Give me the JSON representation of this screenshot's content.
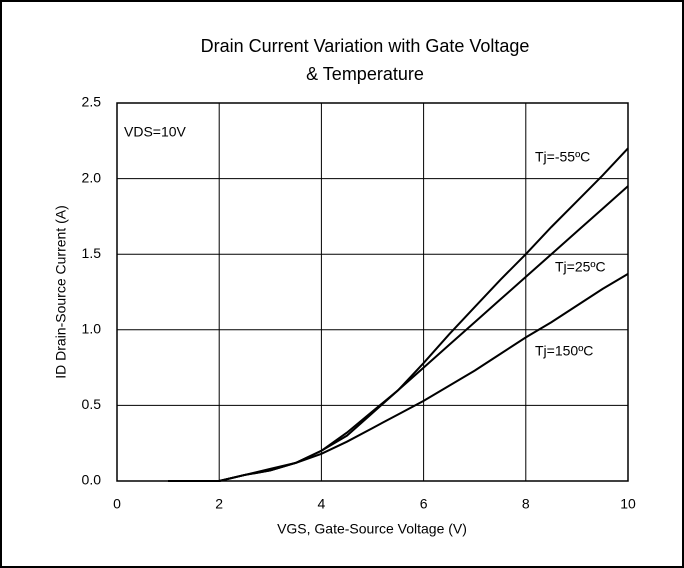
{
  "chart_data": {
    "type": "line",
    "title": [
      "Drain Current Variation with Gate Voltage",
      "& Temperature"
    ],
    "xlabel": "VGS, Gate-Source Voltage (V)",
    "ylabel": "ID Drain-Source Current (A)",
    "annotation": "VDS=10V",
    "x": [
      1,
      2,
      2.5,
      3,
      3.5,
      4,
      4.5,
      5,
      5.5,
      6,
      6.5,
      7,
      7.5,
      8,
      8.5,
      9,
      9.5,
      10
    ],
    "series": [
      {
        "name": "Tj=-55ºC",
        "color": "#000000",
        "values": [
          0,
          0,
          0.04,
          0.07,
          0.12,
          0.2,
          0.3,
          0.45,
          0.6,
          0.78,
          0.97,
          1.15,
          1.33,
          1.5,
          1.68,
          1.85,
          2.02,
          2.2
        ]
      },
      {
        "name": "Tj=25ºC",
        "color": "#000000",
        "values": [
          0,
          0,
          0.04,
          0.07,
          0.12,
          0.2,
          0.32,
          0.46,
          0.6,
          0.75,
          0.9,
          1.05,
          1.2,
          1.35,
          1.5,
          1.65,
          1.8,
          1.95
        ]
      },
      {
        "name": "Tj=150ºC",
        "color": "#000000",
        "values": [
          0,
          0,
          0.04,
          0.08,
          0.12,
          0.18,
          0.26,
          0.35,
          0.44,
          0.53,
          0.63,
          0.73,
          0.84,
          0.95,
          1.05,
          1.16,
          1.27,
          1.37
        ]
      }
    ],
    "xlim": [
      0,
      10
    ],
    "xticks": [
      0,
      2,
      4,
      6,
      8,
      10
    ],
    "ylim": [
      0,
      2.5
    ],
    "yticks": [
      {
        "value": 0,
        "label": "0.0"
      },
      {
        "value": 0.5,
        "label": "0.5"
      },
      {
        "value": 1,
        "label": "1.0"
      },
      {
        "value": 1.5,
        "label": "1.5"
      },
      {
        "value": 2,
        "label": "2.0"
      },
      {
        "value": 2.5,
        "label": "2.5"
      }
    ],
    "grid": true
  }
}
